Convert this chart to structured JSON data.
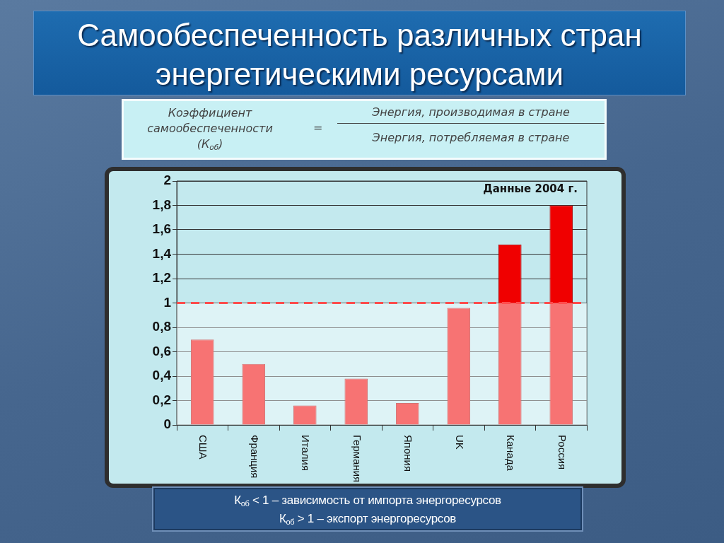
{
  "chart_data": {
    "type": "bar",
    "title": "Самообеспеченность различных стран энергетическими ресурсами",
    "annotations": [
      "Коэффициент самообеспеченности (К$_{об}$)",
      "=",
      "Энергия, производимая в стране",
      "Энергия, потребляемая в стране",
      "Данные 2004 г.",
      "К$_{об}$ < 1 – зависимость от импорта энергоресурсов",
      "К$_{об}$  > 1 – экспорт энергоресурсов"
    ],
    "categories": [
      "США",
      "Франция",
      "Италия",
      "Германия",
      "Япония",
      "UK",
      "Канада",
      "Россия"
    ],
    "values": [
      0.7,
      0.5,
      0.16,
      0.38,
      0.18,
      0.96,
      1.48,
      1.8
    ],
    "color": "#f00000",
    "ylim": [
      0,
      2
    ],
    "yticks": [
      0,
      {
        "value": 0.2,
        "label": "0,2"
      },
      {
        "value": 0.4,
        "label": "0,4"
      },
      {
        "value": 0.6,
        "label": "0,6"
      },
      {
        "value": 0.8,
        "label": "0,8"
      },
      1,
      {
        "value": 1.2,
        "label": "1,2"
      },
      {
        "value": 1.4,
        "label": "1,4"
      },
      {
        "value": 1.6,
        "label": "1,6"
      },
      {
        "value": 1.8,
        "label": "1,8"
      },
      2
    ],
    "grid": "y",
    "legend": false,
    "bands": [
      {
        "axis": "y",
        "from": 0,
        "to": 1,
        "color": "#ffffff"
      }
    ],
    "ref_lines": [
      {
        "axis": "y",
        "value": 1,
        "color": "#ff4d4d",
        "line_style": "dashed"
      }
    ]
  }
}
